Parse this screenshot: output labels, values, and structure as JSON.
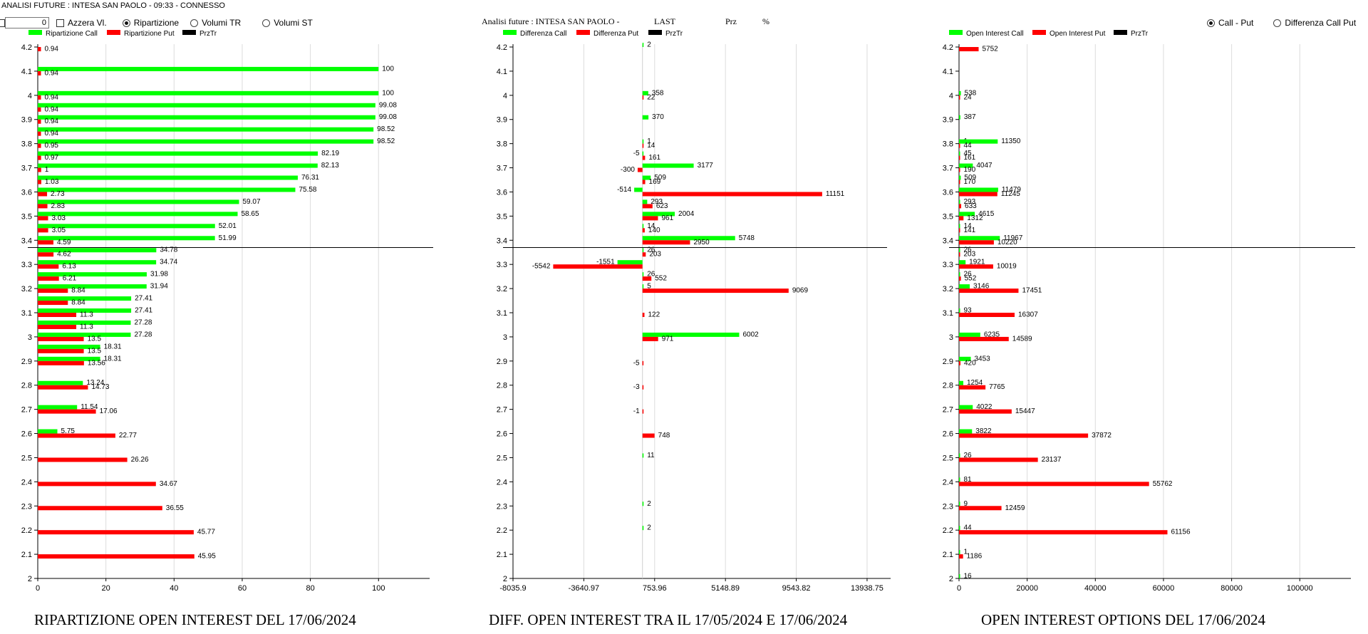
{
  "window": {
    "title": "ANALISI FUTURE : INTESA SAN PAOLO - 09:33 - CONNESSO"
  },
  "toolbar": {
    "input_value": "0",
    "azzera_label": "Azzera Vl.",
    "radio_options": [
      {
        "label": "Ripartizione",
        "selected": true
      },
      {
        "label": "Volumi TR",
        "selected": false
      },
      {
        "label": "Volumi ST",
        "selected": false
      }
    ],
    "middle_header": {
      "text": "Analisi future : INTESA SAN PAOLO -",
      "last": "LAST",
      "prz": "Prz",
      "pct": "%"
    },
    "right_radio_options": [
      {
        "label": "Call - Put",
        "selected": true
      },
      {
        "label": "Differenza Call Put",
        "selected": false
      }
    ]
  },
  "colors": {
    "call": "#00ff00",
    "put": "#ff0000",
    "prztr": "#000000",
    "grid": "#dcdcdc"
  },
  "chart_data": [
    {
      "type": "bar",
      "orientation": "horizontal",
      "title": "RIPARTIZIONE OPEN INTEREST DEL 17/06/2024",
      "legend": [
        "Ripartizione Call",
        "Ripartizione Put",
        "PrzTr"
      ],
      "legend_placement": "top-left",
      "grid": true,
      "y_range": [
        2,
        4.2
      ],
      "x_range": [
        0,
        115
      ],
      "y_ticks": [
        "2",
        "2.1",
        "2.2",
        "2.3",
        "2.4",
        "2.5",
        "2.6",
        "2.7",
        "2.8",
        "2.9",
        "3",
        "3.1",
        "3.2",
        "3.3",
        "3.4",
        "3.5",
        "3.6",
        "3.7",
        "3.8",
        "3.9",
        "4",
        "4.1",
        "4.2"
      ],
      "x_ticks": [
        "0",
        "20",
        "40",
        "60",
        "80",
        "100"
      ],
      "prztr_line": 3.37,
      "bars": [
        {
          "y": 4.2,
          "put": "0.94"
        },
        {
          "y": 4.1,
          "call": "100",
          "put": "0.94"
        },
        {
          "y": 4.0,
          "call": "100",
          "put": "0.94"
        },
        {
          "y": 3.95,
          "call": "99.08",
          "put": "0.94"
        },
        {
          "y": 3.9,
          "call": "99.08",
          "put": "0.94"
        },
        {
          "y": 3.85,
          "call": "98.52",
          "put": "0.94"
        },
        {
          "y": 3.8,
          "call": "98.52",
          "put": "0.95"
        },
        {
          "y": 3.75,
          "call": "82.19",
          "put": "0.97"
        },
        {
          "y": 3.7,
          "call": "82.13",
          "put": "1"
        },
        {
          "y": 3.65,
          "call": "76.31",
          "put": "1.03"
        },
        {
          "y": 3.6,
          "call": "75.58",
          "put": "2.73"
        },
        {
          "y": 3.55,
          "call": "59.07",
          "put": "2.83"
        },
        {
          "y": 3.5,
          "call": "58.65",
          "put": "3.03"
        },
        {
          "y": 3.45,
          "call": "52.01",
          "put": "3.05"
        },
        {
          "y": 3.4,
          "call": "51.99",
          "put": "4.59"
        },
        {
          "y": 3.35,
          "call": "34.78",
          "put": "4.62"
        },
        {
          "y": 3.3,
          "call": "34.74",
          "put": "6.13"
        },
        {
          "y": 3.25,
          "call": "31.98",
          "put": "6.21"
        },
        {
          "y": 3.2,
          "call": "31.94",
          "put": "8.84"
        },
        {
          "y": 3.15,
          "call": "27.41",
          "put": "8.84"
        },
        {
          "y": 3.1,
          "call": "27.41",
          "put": "11.3"
        },
        {
          "y": 3.05,
          "call": "27.28",
          "put": "11.3"
        },
        {
          "y": 3.0,
          "call": "27.28",
          "put": "13.5"
        },
        {
          "y": 2.95,
          "call": "18.31",
          "put": "13.5"
        },
        {
          "y": 2.9,
          "call": "18.31",
          "put": "13.56"
        },
        {
          "y": 2.8,
          "call": "13.24",
          "put": "14.73"
        },
        {
          "y": 2.7,
          "call": "11.54",
          "put": "17.06"
        },
        {
          "y": 2.6,
          "call": "5.75",
          "put": "22.77"
        },
        {
          "y": 2.5,
          "put": "26.26"
        },
        {
          "y": 2.4,
          "put": "34.67"
        },
        {
          "y": 2.3,
          "put": "36.55"
        },
        {
          "y": 2.2,
          "put": "45.77"
        },
        {
          "y": 2.1,
          "put": "45.95"
        }
      ]
    },
    {
      "type": "bar",
      "orientation": "horizontal",
      "title": "DIFF. OPEN INTEREST TRA IL 17/05/2024 E 17/06/2024",
      "legend": [
        "Differenza Call",
        "Differenza Put",
        "PrzTr"
      ],
      "legend_placement": "top-left",
      "grid": true,
      "y_range": [
        2,
        4.2
      ],
      "x_range": [
        -8035.9,
        15400
      ],
      "y_ticks": [
        "2",
        "2.1",
        "2.2",
        "2.3",
        "2.4",
        "2.5",
        "2.6",
        "2.7",
        "2.8",
        "2.9",
        "3",
        "3.1",
        "3.2",
        "3.3",
        "3.4",
        "3.5",
        "3.6",
        "3.7",
        "3.8",
        "3.9",
        "4",
        "4.1",
        "4.2"
      ],
      "x_ticks": [
        "-8035.9",
        "-3640.97",
        "753.96",
        "5148.89",
        "9543.82",
        "13938.75"
      ],
      "prztr_line": 3.37,
      "bars": [
        {
          "y": 4.2,
          "call": "2"
        },
        {
          "y": 4.0,
          "call": "358",
          "put": "22"
        },
        {
          "y": 3.9,
          "call": "370"
        },
        {
          "y": 3.8,
          "call": "1"
        },
        {
          "y": 3.8,
          "put": "14"
        },
        {
          "y": 3.75,
          "call": "-5",
          "put": "161"
        },
        {
          "y": 3.7,
          "call": "3177",
          "put": "-300"
        },
        {
          "y": 3.65,
          "call": "509",
          "put": "169"
        },
        {
          "y": 3.6,
          "call": "-514",
          "put": "11151"
        },
        {
          "y": 3.55,
          "call": "293",
          "put": "623"
        },
        {
          "y": 3.5,
          "call": "2004",
          "put": "961"
        },
        {
          "y": 3.45,
          "call": "14",
          "put": "140"
        },
        {
          "y": 3.4,
          "call": "5748",
          "put": "2950"
        },
        {
          "y": 3.35,
          "call": "26",
          "put": "203"
        },
        {
          "y": 3.3,
          "call": "-1551",
          "put": "-5542"
        },
        {
          "y": 3.25,
          "call": "26",
          "put": "552"
        },
        {
          "y": 3.2,
          "call": "5",
          "put": "9069"
        },
        {
          "y": 3.1,
          "put": "122"
        },
        {
          "y": 3.0,
          "call": "6002",
          "put": "971"
        },
        {
          "y": 2.9,
          "put": "-5"
        },
        {
          "y": 2.8,
          "put": "-3"
        },
        {
          "y": 2.7,
          "put": "-1"
        },
        {
          "y": 2.6,
          "put": "748"
        },
        {
          "y": 2.5,
          "call": "11"
        },
        {
          "y": 2.3,
          "call": "2"
        },
        {
          "y": 2.2,
          "call": "2"
        }
      ]
    },
    {
      "type": "bar",
      "orientation": "horizontal",
      "title": "OPEN INTEREST OPTIONS DEL 17/06/2024",
      "legend": [
        "Open Interest Call",
        "Open Interest Put",
        "PrzTr"
      ],
      "legend_placement": "top-left",
      "grid": true,
      "y_range": [
        2,
        4.2
      ],
      "x_range": [
        0,
        115000
      ],
      "y_ticks": [
        "2",
        "2.1",
        "2.2",
        "2.3",
        "2.4",
        "2.5",
        "2.6",
        "2.7",
        "2.8",
        "2.9",
        "3",
        "3.1",
        "3.2",
        "3.3",
        "3.4",
        "3.5",
        "3.6",
        "3.7",
        "3.8",
        "3.9",
        "4",
        "4.1",
        "4.2"
      ],
      "x_ticks": [
        "0",
        "20000",
        "40000",
        "60000",
        "80000",
        "100000"
      ],
      "prztr_line": 3.37,
      "bars": [
        {
          "y": 4.2,
          "put": "5752"
        },
        {
          "y": 4.0,
          "call": "538",
          "put": "24"
        },
        {
          "y": 3.9,
          "call": "387"
        },
        {
          "y": 3.8,
          "call": "1"
        },
        {
          "y": 3.8,
          "call": "11350",
          "put": "44"
        },
        {
          "y": 3.75,
          "call": "45",
          "put": "161"
        },
        {
          "y": 3.7,
          "call": "4047",
          "put": "190"
        },
        {
          "y": 3.65,
          "call": "509",
          "put": "170"
        },
        {
          "y": 3.6,
          "call": "11479",
          "put": "11245"
        },
        {
          "y": 3.55,
          "call": "293",
          "put": "633"
        },
        {
          "y": 3.5,
          "call": "4615",
          "put": "1312"
        },
        {
          "y": 3.45,
          "call": "14",
          "put": "141"
        },
        {
          "y": 3.4,
          "call": "11967",
          "put": "10220"
        },
        {
          "y": 3.35,
          "call": "26",
          "put": "203"
        },
        {
          "y": 3.3,
          "call": "1921",
          "put": "10019"
        },
        {
          "y": 3.25,
          "call": "26",
          "put": "552"
        },
        {
          "y": 3.2,
          "call": "3146",
          "put": "17451"
        },
        {
          "y": 3.1,
          "call": "93",
          "put": "16307"
        },
        {
          "y": 3.0,
          "call": "6235",
          "put": "14589"
        },
        {
          "y": 2.9,
          "call": "3453",
          "put": "420"
        },
        {
          "y": 2.8,
          "call": "1254",
          "put": "7765"
        },
        {
          "y": 2.7,
          "call": "4022",
          "put": "15447"
        },
        {
          "y": 2.6,
          "call": "3822",
          "put": "37872"
        },
        {
          "y": 2.5,
          "call": "26",
          "put": "23137"
        },
        {
          "y": 2.4,
          "call": "81",
          "put": "55762"
        },
        {
          "y": 2.3,
          "call": "9",
          "put": "12459"
        },
        {
          "y": 2.2,
          "call": "44",
          "put": "61156"
        },
        {
          "y": 2.1,
          "call": "1",
          "put": "1186"
        },
        {
          "y": 2.0,
          "call": "16"
        }
      ]
    }
  ]
}
